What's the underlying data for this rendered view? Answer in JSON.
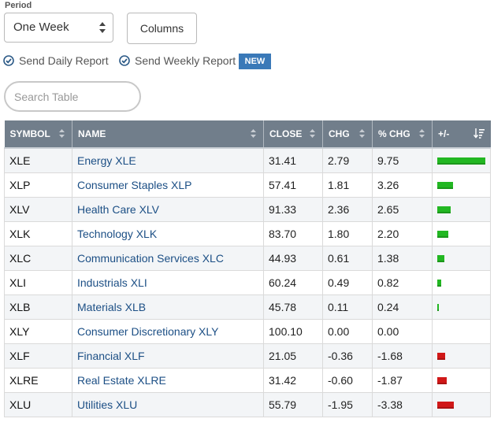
{
  "period": {
    "label": "Period",
    "selected": "One Week"
  },
  "columns_button": "Columns",
  "reports": {
    "daily": "Send Daily Report",
    "weekly": "Send Weekly Report",
    "badge": "NEW"
  },
  "search": {
    "placeholder": "Search Table"
  },
  "colors": {
    "positive": "#22b722",
    "negative": "#d01818",
    "header_bg": "#717e8b",
    "link": "#1c4f85",
    "accent": "#3a79b8"
  },
  "table": {
    "headers": [
      "SYMBOL",
      "NAME",
      "CLOSE",
      "CHG",
      "% CHG",
      "+/-"
    ],
    "rows": [
      {
        "symbol": "XLE",
        "name": "Energy XLE",
        "close": "31.41",
        "chg": "2.79",
        "pct_chg": "9.75",
        "pct_value": 9.75
      },
      {
        "symbol": "XLP",
        "name": "Consumer Staples XLP",
        "close": "57.41",
        "chg": "1.81",
        "pct_chg": "3.26",
        "pct_value": 3.26
      },
      {
        "symbol": "XLV",
        "name": "Health Care XLV",
        "close": "91.33",
        "chg": "2.36",
        "pct_chg": "2.65",
        "pct_value": 2.65
      },
      {
        "symbol": "XLK",
        "name": "Technology XLK",
        "close": "83.70",
        "chg": "1.80",
        "pct_chg": "2.20",
        "pct_value": 2.2
      },
      {
        "symbol": "XLC",
        "name": "Communication Services XLC",
        "close": "44.93",
        "chg": "0.61",
        "pct_chg": "1.38",
        "pct_value": 1.38
      },
      {
        "symbol": "XLI",
        "name": "Industrials XLI",
        "close": "60.24",
        "chg": "0.49",
        "pct_chg": "0.82",
        "pct_value": 0.82
      },
      {
        "symbol": "XLB",
        "name": "Materials XLB",
        "close": "45.78",
        "chg": "0.11",
        "pct_chg": "0.24",
        "pct_value": 0.24
      },
      {
        "symbol": "XLY",
        "name": "Consumer Discretionary XLY",
        "close": "100.10",
        "chg": "0.00",
        "pct_chg": "0.00",
        "pct_value": 0.0
      },
      {
        "symbol": "XLF",
        "name": "Financial XLF",
        "close": "21.05",
        "chg": "-0.36",
        "pct_chg": "-1.68",
        "pct_value": -1.68
      },
      {
        "symbol": "XLRE",
        "name": "Real Estate XLRE",
        "close": "31.42",
        "chg": "-0.60",
        "pct_chg": "-1.87",
        "pct_value": -1.87
      },
      {
        "symbol": "XLU",
        "name": "Utilities XLU",
        "close": "55.79",
        "chg": "-1.95",
        "pct_chg": "-3.38",
        "pct_value": -3.38
      }
    ]
  }
}
